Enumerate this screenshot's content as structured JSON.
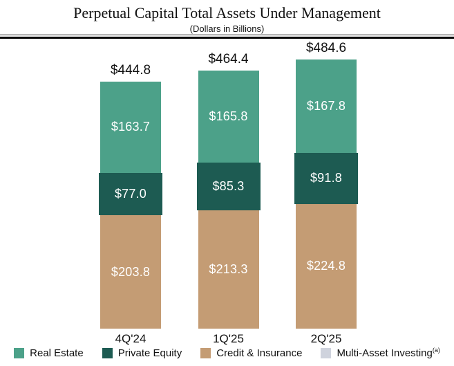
{
  "header": {
    "title": "Perpetual Capital Total Assets Under Management",
    "subtitle": "(Dollars in Billions)"
  },
  "chart_data": {
    "type": "bar",
    "stacked": true,
    "stack_order": "top-to-bottom",
    "title": "Perpetual Capital Total Assets Under Management",
    "subtitle": "(Dollars in Billions)",
    "unit": "USD billions",
    "grid": false,
    "legend_position": "bottom",
    "categories": [
      "4Q'24",
      "1Q'25",
      "2Q'25"
    ],
    "totals": [
      444.8,
      464.4,
      484.6
    ],
    "total_labels": [
      "$444.8",
      "$464.4",
      "$484.6"
    ],
    "series": [
      {
        "name": "Real Estate",
        "color": "#4CA189",
        "values": [
          163.7,
          165.8,
          167.8
        ],
        "labels": [
          "$163.7",
          "$165.8",
          "$167.8"
        ]
      },
      {
        "name": "Private Equity",
        "color": "#1D5B52",
        "values": [
          77.0,
          85.3,
          91.8
        ],
        "labels": [
          "$77.0",
          "$85.3",
          "$91.8"
        ]
      },
      {
        "name": "Credit & Insurance",
        "color": "#C49C74",
        "values": [
          203.8,
          213.3,
          224.8
        ],
        "labels": [
          "$203.8",
          "$213.3",
          "$224.8"
        ]
      }
    ],
    "value_label_color": "#FFFFFF"
  },
  "legend": {
    "items": [
      {
        "label": "Real Estate",
        "color": "#4CA189",
        "superscript": ""
      },
      {
        "label": "Private Equity",
        "color": "#1D5B52",
        "superscript": ""
      },
      {
        "label": "Credit & Insurance",
        "color": "#C49C74",
        "superscript": ""
      },
      {
        "label": "Multi-Asset Investing",
        "color": "#CFD3DD",
        "superscript": "(a)"
      }
    ]
  }
}
